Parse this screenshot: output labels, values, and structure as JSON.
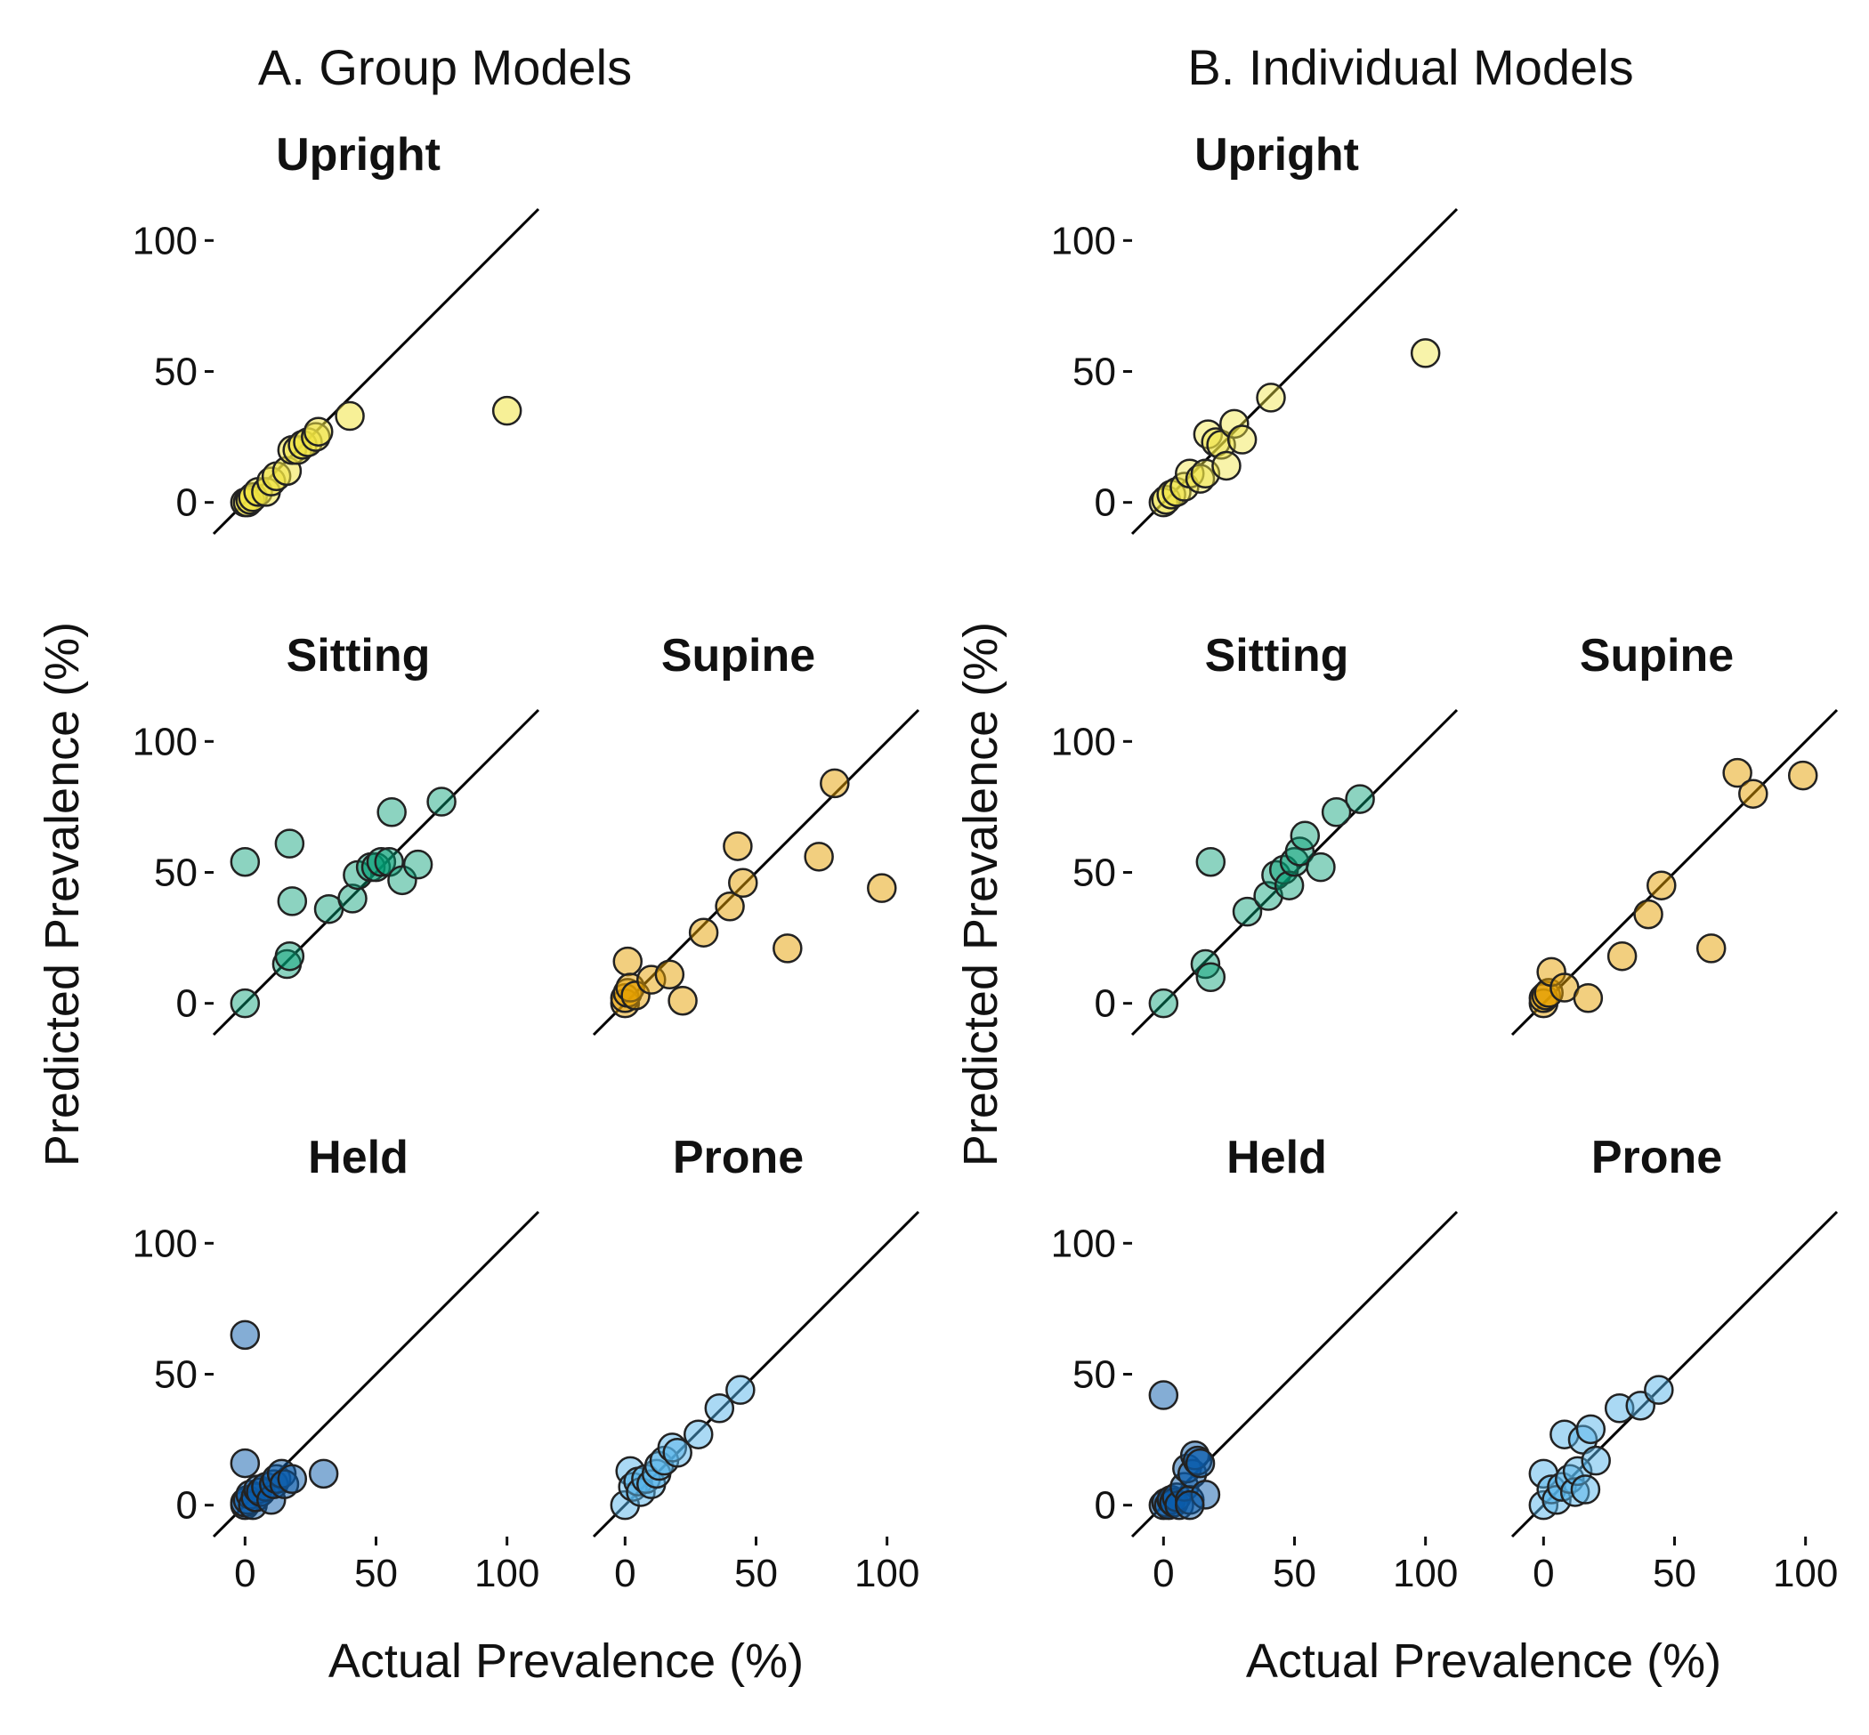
{
  "figure": {
    "section_titles": [
      "A. Group Models",
      "B. Individual Models"
    ],
    "xlabel": "Actual Prevalence (%)",
    "ylabel": "Predicted Prevalence (%)"
  },
  "colors": {
    "Upright": "#f0e442",
    "Sitting": "#009e73",
    "Supine": "#e69f00",
    "Held": "#0a5cab",
    "Prone": "#56b4e9"
  },
  "chart_data": [
    {
      "type": "scatter",
      "section": "A. Group Models",
      "title": "Upright",
      "xlim": [
        -12,
        112
      ],
      "ylim": [
        -12,
        112
      ],
      "ticks": [
        0,
        50,
        100
      ],
      "identity_line": true,
      "point_alpha": 0.55,
      "color": "#f0e442",
      "points": [
        [
          0,
          0
        ],
        [
          1,
          0
        ],
        [
          2,
          1
        ],
        [
          3,
          2
        ],
        [
          5,
          4
        ],
        [
          8,
          4
        ],
        [
          10,
          8
        ],
        [
          12,
          10
        ],
        [
          16,
          12
        ],
        [
          18,
          20
        ],
        [
          20,
          20
        ],
        [
          22,
          22
        ],
        [
          24,
          23
        ],
        [
          27,
          25
        ],
        [
          28,
          27
        ],
        [
          40,
          33
        ],
        [
          100,
          35
        ]
      ]
    },
    {
      "type": "scatter",
      "section": "A. Group Models",
      "title": "Sitting",
      "xlim": [
        -12,
        112
      ],
      "ylim": [
        -12,
        112
      ],
      "ticks": [
        0,
        50,
        100
      ],
      "identity_line": true,
      "point_alpha": 0.45,
      "color": "#009e73",
      "points": [
        [
          0,
          0
        ],
        [
          0,
          54
        ],
        [
          16,
          15
        ],
        [
          17,
          18
        ],
        [
          17,
          61
        ],
        [
          18,
          39
        ],
        [
          32,
          36
        ],
        [
          41,
          40
        ],
        [
          43,
          49
        ],
        [
          48,
          52
        ],
        [
          50,
          52
        ],
        [
          52,
          54
        ],
        [
          55,
          54
        ],
        [
          56,
          73
        ],
        [
          60,
          47
        ],
        [
          66,
          53
        ],
        [
          75,
          77
        ]
      ]
    },
    {
      "type": "scatter",
      "section": "A. Group Models",
      "title": "Supine",
      "xlim": [
        -12,
        112
      ],
      "ylim": [
        -12,
        112
      ],
      "ticks": [
        0,
        50,
        100
      ],
      "identity_line": true,
      "point_alpha": 0.5,
      "color": "#e69f00",
      "points": [
        [
          0,
          0
        ],
        [
          0,
          2
        ],
        [
          1,
          4
        ],
        [
          1,
          16
        ],
        [
          2,
          6
        ],
        [
          4,
          3
        ],
        [
          10,
          9
        ],
        [
          17,
          11
        ],
        [
          22,
          1
        ],
        [
          30,
          27
        ],
        [
          40,
          37
        ],
        [
          43,
          60
        ],
        [
          45,
          46
        ],
        [
          62,
          21
        ],
        [
          74,
          56
        ],
        [
          80,
          84
        ],
        [
          98,
          44
        ]
      ]
    },
    {
      "type": "scatter",
      "section": "A. Group Models",
      "title": "Held",
      "xlim": [
        -12,
        112
      ],
      "ylim": [
        -12,
        112
      ],
      "ticks": [
        0,
        50,
        100
      ],
      "identity_line": true,
      "point_alpha": 0.5,
      "color": "#0a5cab",
      "points": [
        [
          0,
          0
        ],
        [
          0,
          1
        ],
        [
          1,
          2
        ],
        [
          2,
          4
        ],
        [
          3,
          0
        ],
        [
          4,
          3
        ],
        [
          5,
          6
        ],
        [
          6,
          5
        ],
        [
          8,
          7
        ],
        [
          10,
          2
        ],
        [
          11,
          8
        ],
        [
          12,
          10
        ],
        [
          14,
          12
        ],
        [
          15,
          8
        ],
        [
          18,
          10
        ],
        [
          30,
          12
        ],
        [
          0,
          16
        ],
        [
          0,
          65
        ]
      ]
    },
    {
      "type": "scatter",
      "section": "A. Group Models",
      "title": "Prone",
      "xlim": [
        -12,
        112
      ],
      "ylim": [
        -12,
        112
      ],
      "ticks": [
        0,
        50,
        100
      ],
      "identity_line": true,
      "point_alpha": 0.5,
      "color": "#56b4e9",
      "points": [
        [
          0,
          0
        ],
        [
          2,
          13
        ],
        [
          3,
          7
        ],
        [
          5,
          9
        ],
        [
          6,
          5
        ],
        [
          8,
          10
        ],
        [
          10,
          8
        ],
        [
          12,
          12
        ],
        [
          13,
          15
        ],
        [
          15,
          17
        ],
        [
          18,
          22
        ],
        [
          20,
          20
        ],
        [
          28,
          27
        ],
        [
          36,
          37
        ],
        [
          44,
          44
        ]
      ]
    },
    {
      "type": "scatter",
      "section": "B. Individual Models",
      "title": "Upright",
      "xlim": [
        -12,
        112
      ],
      "ylim": [
        -12,
        112
      ],
      "ticks": [
        0,
        50,
        100
      ],
      "identity_line": true,
      "point_alpha": 0.45,
      "color": "#f0e442",
      "points": [
        [
          0,
          0
        ],
        [
          1,
          1
        ],
        [
          3,
          3
        ],
        [
          5,
          4
        ],
        [
          8,
          6
        ],
        [
          10,
          11
        ],
        [
          14,
          9
        ],
        [
          16,
          11
        ],
        [
          17,
          26
        ],
        [
          20,
          23
        ],
        [
          22,
          22
        ],
        [
          24,
          14
        ],
        [
          27,
          30
        ],
        [
          30,
          24
        ],
        [
          41,
          40
        ],
        [
          100,
          57
        ]
      ]
    },
    {
      "type": "scatter",
      "section": "B. Individual Models",
      "title": "Sitting",
      "xlim": [
        -12,
        112
      ],
      "ylim": [
        -12,
        112
      ],
      "ticks": [
        0,
        50,
        100
      ],
      "identity_line": true,
      "point_alpha": 0.45,
      "color": "#009e73",
      "points": [
        [
          0,
          0
        ],
        [
          16,
          15
        ],
        [
          18,
          10
        ],
        [
          18,
          54
        ],
        [
          32,
          35
        ],
        [
          40,
          41
        ],
        [
          43,
          49
        ],
        [
          46,
          51
        ],
        [
          48,
          45
        ],
        [
          50,
          54
        ],
        [
          52,
          58
        ],
        [
          54,
          64
        ],
        [
          60,
          52
        ],
        [
          66,
          73
        ],
        [
          75,
          78
        ]
      ]
    },
    {
      "type": "scatter",
      "section": "B. Individual Models",
      "title": "Supine",
      "xlim": [
        -12,
        112
      ],
      "ylim": [
        -12,
        112
      ],
      "ticks": [
        0,
        50,
        100
      ],
      "identity_line": true,
      "point_alpha": 0.5,
      "color": "#e69f00",
      "points": [
        [
          0,
          0
        ],
        [
          0,
          2
        ],
        [
          1,
          3
        ],
        [
          2,
          4
        ],
        [
          3,
          12
        ],
        [
          8,
          6
        ],
        [
          17,
          2
        ],
        [
          30,
          18
        ],
        [
          40,
          34
        ],
        [
          45,
          45
        ],
        [
          64,
          21
        ],
        [
          74,
          88
        ],
        [
          80,
          80
        ],
        [
          99,
          87
        ]
      ]
    },
    {
      "type": "scatter",
      "section": "B. Individual Models",
      "title": "Held",
      "xlim": [
        -12,
        112
      ],
      "ylim": [
        -12,
        112
      ],
      "ticks": [
        0,
        50,
        100
      ],
      "identity_line": true,
      "point_alpha": 0.5,
      "color": "#0a5cab",
      "points": [
        [
          0,
          0
        ],
        [
          0,
          42
        ],
        [
          1,
          1
        ],
        [
          2,
          0
        ],
        [
          3,
          2
        ],
        [
          4,
          1
        ],
        [
          5,
          3
        ],
        [
          6,
          0
        ],
        [
          8,
          7
        ],
        [
          9,
          14
        ],
        [
          10,
          2
        ],
        [
          11,
          12
        ],
        [
          12,
          19
        ],
        [
          13,
          17
        ],
        [
          14,
          16
        ],
        [
          16,
          4
        ],
        [
          10,
          0
        ]
      ]
    },
    {
      "type": "scatter",
      "section": "B. Individual Models",
      "title": "Prone",
      "xlim": [
        -12,
        112
      ],
      "ylim": [
        -12,
        112
      ],
      "ticks": [
        0,
        50,
        100
      ],
      "identity_line": true,
      "point_alpha": 0.5,
      "color": "#56b4e9",
      "points": [
        [
          0,
          0
        ],
        [
          0,
          12
        ],
        [
          3,
          6
        ],
        [
          5,
          2
        ],
        [
          7,
          7
        ],
        [
          8,
          27
        ],
        [
          10,
          10
        ],
        [
          12,
          5
        ],
        [
          13,
          13
        ],
        [
          15,
          25
        ],
        [
          16,
          6
        ],
        [
          18,
          29
        ],
        [
          20,
          17
        ],
        [
          29,
          37
        ],
        [
          37,
          38
        ],
        [
          44,
          44
        ]
      ]
    }
  ]
}
